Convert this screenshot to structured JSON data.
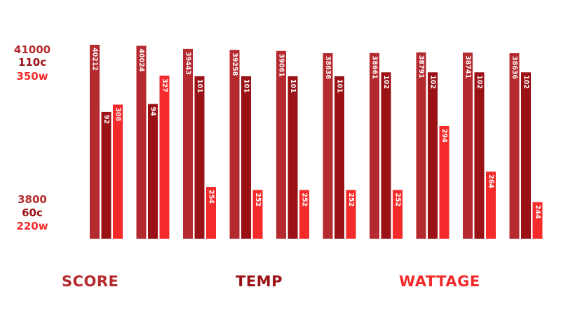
{
  "chart_data": {
    "type": "bar",
    "colors": {
      "score": "#b52a2f",
      "temp": "#9a1116",
      "wattage": "#f52a2a"
    },
    "axis_top": {
      "score": "41000",
      "temp": "110c",
      "wattage": "350w"
    },
    "axis_bottom": {
      "score": "3800",
      "temp": "60c",
      "wattage": "220w"
    },
    "score_range": [
      3800,
      41000
    ],
    "temp_range": [
      60,
      110
    ],
    "wattage_range": [
      220,
      350
    ],
    "series": [
      {
        "name": "SCORE",
        "values": [
          40212,
          40024,
          39443,
          39258,
          39061,
          38636,
          38661,
          38791,
          38741,
          38636
        ]
      },
      {
        "name": "TEMP",
        "values": [
          92,
          94,
          101,
          101,
          101,
          101,
          102,
          102,
          102,
          102
        ]
      },
      {
        "name": "WATTAGE",
        "values": [
          308,
          327,
          254,
          252,
          252,
          252,
          252,
          294,
          264,
          244
        ]
      }
    ],
    "grid": false
  }
}
